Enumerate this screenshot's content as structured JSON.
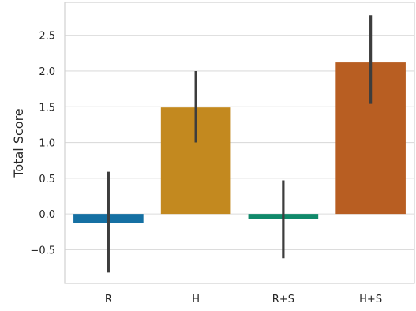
{
  "chart_data": {
    "type": "bar",
    "title": "",
    "xlabel": "",
    "ylabel": "Total Score",
    "categories": [
      "R",
      "H",
      "R+S",
      "H+S"
    ],
    "values": [
      -0.13,
      1.49,
      -0.07,
      2.12
    ],
    "error_low": [
      -0.82,
      1.0,
      -0.62,
      1.54
    ],
    "error_high": [
      0.59,
      2.0,
      0.47,
      2.78
    ],
    "colors": [
      "#0072B2",
      "#E69F00",
      "#009E73",
      "#D55E00"
    ],
    "bar_saturation_colors": [
      "#1570a3",
      "#c3891f",
      "#10896a",
      "#b85e22"
    ],
    "error_color": "#3d3d3d",
    "yticks": [
      -0.5,
      0.0,
      0.5,
      1.0,
      1.5,
      2.0,
      2.5
    ],
    "ytick_labels": [
      "−0.5",
      "0.0",
      "0.5",
      "1.0",
      "1.5",
      "2.0",
      "2.5"
    ],
    "ylim": [
      -0.97,
      2.96
    ],
    "grid": "horizontal",
    "legend": "none"
  }
}
